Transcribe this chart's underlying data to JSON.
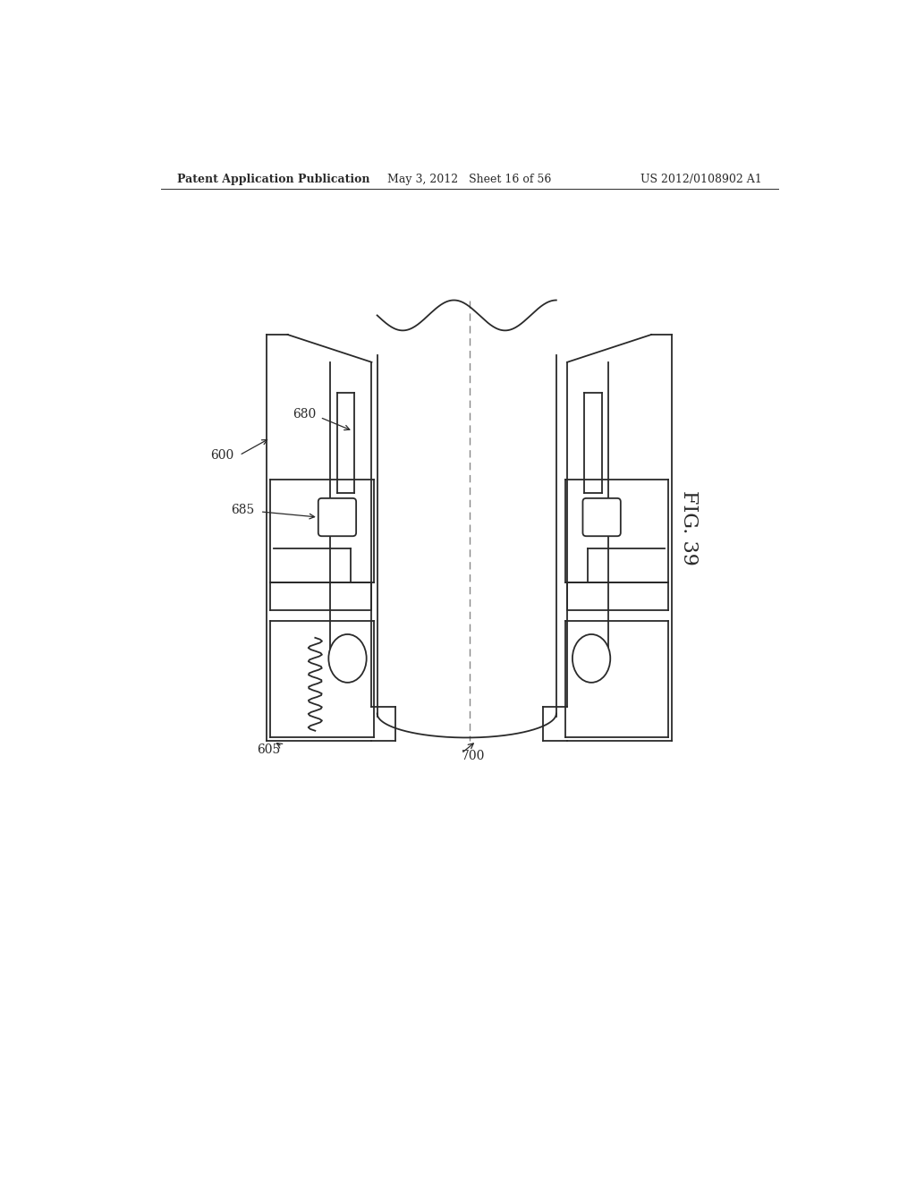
{
  "bg_color": "#ffffff",
  "line_color": "#2a2a2a",
  "header_left": "Patent Application Publication",
  "header_center": "May 3, 2012   Sheet 16 of 56",
  "header_right": "US 2012/0108902 A1",
  "fig_label": "FIG. 39",
  "dashed_line_color": "#888888"
}
